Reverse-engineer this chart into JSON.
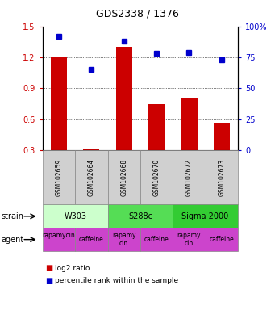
{
  "title": "GDS2338 / 1376",
  "samples": [
    "GSM102659",
    "GSM102664",
    "GSM102668",
    "GSM102670",
    "GSM102672",
    "GSM102673"
  ],
  "log2_ratio": [
    1.21,
    0.32,
    1.3,
    0.75,
    0.8,
    0.57
  ],
  "percentile": [
    92,
    65,
    88,
    78,
    79,
    73
  ],
  "bar_color": "#cc0000",
  "dot_color": "#0000cc",
  "strains": [
    {
      "label": "W303",
      "start": 0,
      "end": 2,
      "color": "#ccffcc"
    },
    {
      "label": "S288c",
      "start": 2,
      "end": 4,
      "color": "#55dd55"
    },
    {
      "label": "Sigma 2000",
      "start": 4,
      "end": 6,
      "color": "#33cc33"
    }
  ],
  "agents": [
    {
      "label": "rapamycin",
      "start": 0,
      "end": 1,
      "color": "#cc44cc"
    },
    {
      "label": "caffeine",
      "start": 1,
      "end": 2,
      "color": "#cc44cc"
    },
    {
      "label": "rapamycin",
      "start": 2,
      "end": 3,
      "color": "#cc44cc"
    },
    {
      "label": "caffeine",
      "start": 3,
      "end": 4,
      "color": "#cc44cc"
    },
    {
      "label": "rapamycin",
      "start": 4,
      "end": 5,
      "color": "#cc44cc"
    },
    {
      "label": "caffeine",
      "start": 5,
      "end": 6,
      "color": "#cc44cc"
    }
  ],
  "agent_labels": [
    "rapamycin\n",
    "caffeine",
    "rapamy\ncin",
    "caffeine",
    "rapamy\ncin",
    "caffeine"
  ],
  "ylim_left": [
    0.3,
    1.5
  ],
  "ylim_right": [
    0,
    100
  ],
  "yticks_left": [
    0.3,
    0.6,
    0.9,
    1.2,
    1.5
  ],
  "yticks_right": [
    0,
    25,
    50,
    75,
    100
  ],
  "ytick_labels_left": [
    "0.3",
    "0.6",
    "0.9",
    "1.2",
    "1.5"
  ],
  "ytick_labels_right": [
    "0",
    "25",
    "50",
    "75",
    "100%"
  ],
  "legend_items": [
    {
      "label": "log2 ratio",
      "color": "#cc0000"
    },
    {
      "label": "percentile rank within the sample",
      "color": "#0000cc"
    }
  ]
}
